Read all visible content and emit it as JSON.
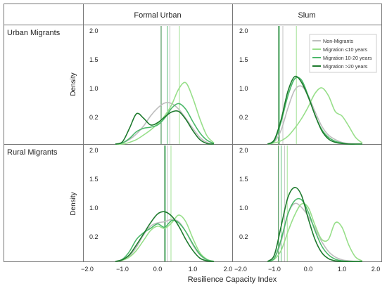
{
  "figure": {
    "col_headers": [
      "Formal Urban",
      "Slum"
    ],
    "row_headers": [
      "Urban Migrants",
      "Rural Migrants"
    ],
    "ylabel": "Density",
    "xlabel": "Resilience Capacity Index",
    "y_tick_labels": [
      "2.0",
      "1.5",
      "1.0",
      "0.2"
    ],
    "x_tick_labels": [
      "−2.0",
      "−1.0",
      "0.0",
      "1.0",
      "2.0"
    ]
  },
  "chart_data": {
    "type": "line",
    "xlabel": "Resilience Capacity Index",
    "ylabel": "Density",
    "xlim": [
      -2.0,
      2.0
    ],
    "ylim": [
      0,
      2.0
    ],
    "legend": {
      "placement": "top-right",
      "entries": [
        "Non-Migrants",
        "Migration ≤10 years",
        "Migration 10-20 years",
        "Migration >20 years"
      ]
    },
    "series_colors": [
      "#bdbdbd",
      "#98df8a",
      "#4cb86a",
      "#1e7a2e"
    ],
    "x": [
      -1.2,
      -1.0,
      -0.8,
      -0.6,
      -0.4,
      -0.2,
      0.0,
      0.2,
      0.4,
      0.6,
      0.8,
      1.0,
      1.2,
      1.4,
      1.6
    ],
    "panels": [
      {
        "row": "Urban Migrants",
        "col": "Formal Urban",
        "series": [
          {
            "name": "Non-Migrants",
            "values": [
              0.0,
              0.02,
              0.08,
              0.18,
              0.32,
              0.5,
              0.64,
              0.73,
              0.72,
              0.62,
              0.46,
              0.28,
              0.12,
              0.03,
              0.0
            ],
            "mean": 0.35
          },
          {
            "name": "Migration ≤10 years",
            "values": [
              0.0,
              0.0,
              0.03,
              0.08,
              0.16,
              0.25,
              0.36,
              0.5,
              0.7,
              0.98,
              1.09,
              0.82,
              0.45,
              0.15,
              0.02
            ],
            "mean": 0.62
          },
          {
            "name": "Migration 10-20 years",
            "values": [
              0.0,
              0.02,
              0.1,
              0.22,
              0.28,
              0.3,
              0.34,
              0.46,
              0.64,
              0.72,
              0.62,
              0.4,
              0.2,
              0.07,
              0.01
            ],
            "mean": 0.28
          },
          {
            "name": "Migration >20 years",
            "values": [
              0.0,
              0.04,
              0.28,
              0.54,
              0.46,
              0.34,
              0.38,
              0.48,
              0.57,
              0.58,
              0.44,
              0.24,
              0.08,
              0.01,
              0.0
            ],
            "mean": 0.1
          }
        ]
      },
      {
        "row": "Urban Migrants",
        "col": "Slum",
        "series": [
          {
            "name": "Non-Migrants",
            "values": [
              0.0,
              0.04,
              0.25,
              0.64,
              0.96,
              1.03,
              0.86,
              0.58,
              0.32,
              0.16,
              0.08,
              0.03,
              0.01,
              0.0,
              0.0
            ],
            "mean": -0.75
          },
          {
            "name": "Migration ≤10 years",
            "values": [
              0.0,
              0.02,
              0.06,
              0.14,
              0.28,
              0.45,
              0.66,
              0.9,
              1.0,
              0.86,
              0.58,
              0.5,
              0.32,
              0.12,
              0.02
            ],
            "mean": -0.35
          },
          {
            "name": "Migration 10-20 years",
            "values": [
              0.0,
              0.06,
              0.4,
              0.86,
              1.16,
              1.14,
              0.86,
              0.52,
              0.26,
              0.12,
              0.05,
              0.02,
              0.0,
              0.0,
              0.0
            ],
            "mean": -0.85
          },
          {
            "name": "Migration >20 years",
            "values": [
              0.0,
              0.08,
              0.44,
              0.94,
              1.2,
              1.1,
              0.84,
              0.52,
              0.24,
              0.09,
              0.03,
              0.01,
              0.0,
              0.0,
              0.0
            ],
            "mean": -0.88
          }
        ]
      },
      {
        "row": "Rural Migrants",
        "col": "Formal Urban",
        "series": [
          {
            "name": "Non-Migrants",
            "values": [
              0.0,
              0.02,
              0.1,
              0.26,
              0.48,
              0.64,
              0.7,
              0.72,
              0.76,
              0.72,
              0.54,
              0.3,
              0.12,
              0.03,
              0.0
            ],
            "mean": 0.28
          },
          {
            "name": "Migration ≤10 years",
            "values": [
              0.0,
              0.02,
              0.08,
              0.2,
              0.38,
              0.56,
              0.64,
              0.6,
              0.7,
              0.84,
              0.72,
              0.42,
              0.16,
              0.04,
              0.0
            ],
            "mean": 0.38
          },
          {
            "name": "Migration 10-20 years",
            "values": [
              0.0,
              0.04,
              0.18,
              0.4,
              0.52,
              0.6,
              0.68,
              0.62,
              0.74,
              0.7,
              0.54,
              0.32,
              0.13,
              0.03,
              0.0
            ],
            "mean": 0.22
          },
          {
            "name": "Migration >20 years",
            "values": [
              0.0,
              0.03,
              0.12,
              0.3,
              0.5,
              0.7,
              0.86,
              0.9,
              0.82,
              0.64,
              0.4,
              0.2,
              0.06,
              0.01,
              0.0
            ],
            "mean": 0.2
          }
        ]
      },
      {
        "row": "Rural Migrants",
        "col": "Slum",
        "series": [
          {
            "name": "Non-Migrants",
            "values": [
              0.0,
              0.06,
              0.36,
              0.86,
              1.05,
              0.98,
              0.82,
              0.6,
              0.36,
              0.18,
              0.08,
              0.03,
              0.01,
              0.0,
              0.0
            ],
            "mean": -0.7
          },
          {
            "name": "Migration ≤10 years",
            "values": [
              0.0,
              0.04,
              0.2,
              0.54,
              0.84,
              1.04,
              0.98,
              0.66,
              0.4,
              0.4,
              0.7,
              0.62,
              0.3,
              0.08,
              0.01
            ],
            "mean": -0.62
          },
          {
            "name": "Migration 10-20 years",
            "values": [
              0.0,
              0.06,
              0.4,
              0.86,
              1.1,
              1.12,
              0.9,
              0.56,
              0.28,
              0.12,
              0.04,
              0.01,
              0.0,
              0.0,
              0.0
            ],
            "mean": -0.8
          },
          {
            "name": "Migration >20 years",
            "values": [
              0.0,
              0.12,
              0.64,
              1.16,
              1.34,
              1.2,
              0.78,
              0.4,
              0.16,
              0.05,
              0.01,
              0.0,
              0.0,
              0.0,
              0.0
            ],
            "mean": -0.88
          }
        ]
      }
    ]
  }
}
